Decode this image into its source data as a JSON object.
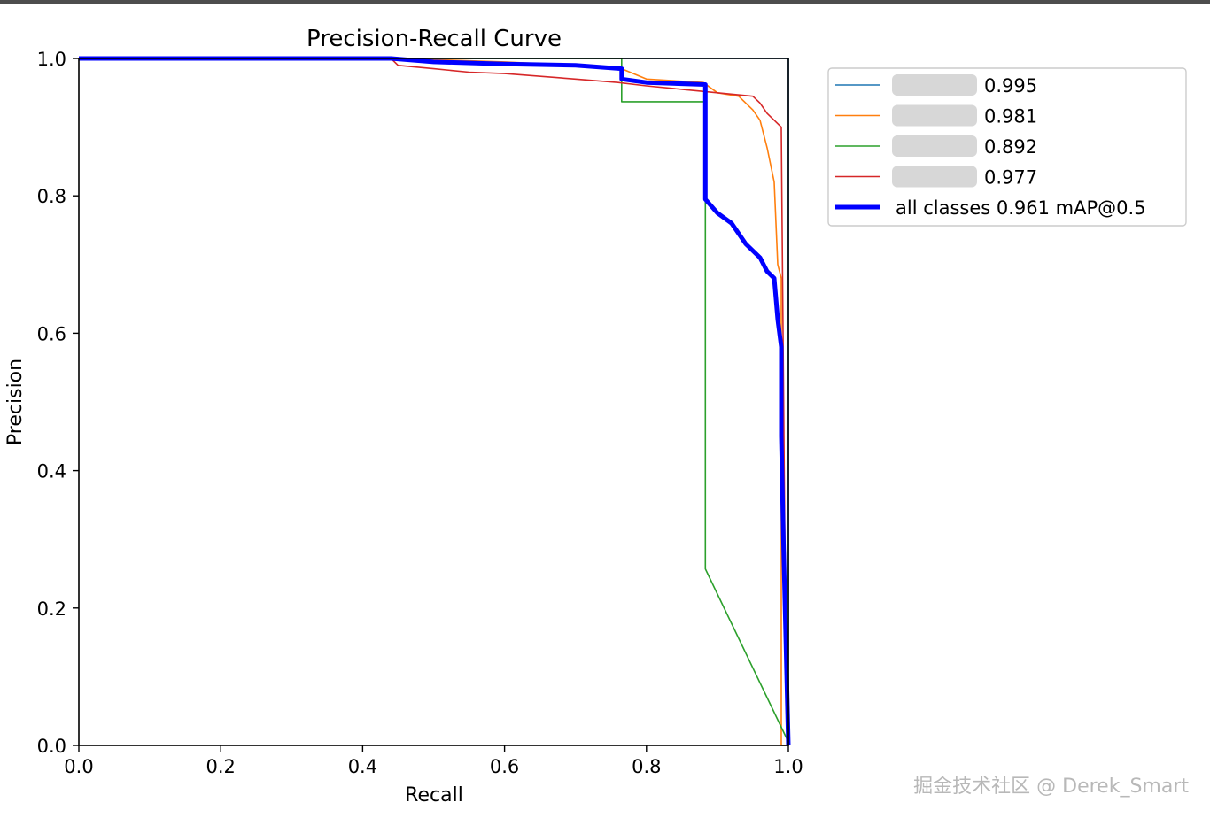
{
  "chart_data": {
    "type": "line",
    "title": "Precision-Recall Curve",
    "xlabel": "Recall",
    "ylabel": "Precision",
    "xlim": [
      0,
      1
    ],
    "ylim": [
      0,
      1
    ],
    "xticks": [
      "0.0",
      "0.2",
      "0.4",
      "0.6",
      "0.8",
      "1.0"
    ],
    "yticks": [
      "0.0",
      "0.2",
      "0.4",
      "0.6",
      "0.8",
      "1.0"
    ],
    "grid": false,
    "legend_position": "outside-top-right",
    "series": [
      {
        "name": "0.995",
        "color": "#1f77b4",
        "x": [
          0.0,
          0.998,
          1.0,
          1.0
        ],
        "y": [
          1.0,
          1.0,
          1.0,
          0.0
        ]
      },
      {
        "name": "0.981",
        "color": "#ff7f0e",
        "x": [
          0.0,
          0.45,
          0.6,
          0.7,
          0.765,
          0.8,
          0.88,
          0.9,
          0.93,
          0.95,
          0.96,
          0.97,
          0.98,
          0.985,
          0.99,
          0.99,
          1.0
        ],
        "y": [
          1.0,
          1.0,
          0.995,
          0.99,
          0.985,
          0.97,
          0.965,
          0.95,
          0.945,
          0.925,
          0.91,
          0.87,
          0.82,
          0.7,
          0.68,
          0.0,
          0.0
        ]
      },
      {
        "name": "0.892",
        "color": "#2ca02c",
        "x": [
          0.0,
          0.765,
          0.765,
          0.883,
          0.883,
          0.883,
          1.0
        ],
        "y": [
          1.0,
          1.0,
          0.937,
          0.937,
          0.8,
          0.257,
          0.005
        ]
      },
      {
        "name": "0.977",
        "color": "#d62728",
        "x": [
          0.0,
          0.44,
          0.45,
          0.5,
          0.55,
          0.6,
          0.7,
          0.76,
          0.8,
          0.85,
          0.9,
          0.95,
          0.96,
          0.97,
          0.98,
          0.99,
          0.995,
          1.0
        ],
        "y": [
          1.0,
          1.0,
          0.99,
          0.985,
          0.98,
          0.978,
          0.97,
          0.965,
          0.96,
          0.955,
          0.95,
          0.945,
          0.935,
          0.92,
          0.91,
          0.9,
          0.3,
          0.0
        ]
      },
      {
        "name": "all classes 0.961 mAP@0.5",
        "color": "#0000ff",
        "thick": true,
        "x": [
          0.0,
          0.44,
          0.5,
          0.6,
          0.7,
          0.765,
          0.765,
          0.8,
          0.883,
          0.883,
          0.9,
          0.92,
          0.94,
          0.96,
          0.97,
          0.98,
          0.985,
          0.99,
          0.99,
          0.993,
          1.0
        ],
        "y": [
          1.0,
          1.0,
          0.995,
          0.992,
          0.99,
          0.985,
          0.97,
          0.965,
          0.962,
          0.795,
          0.775,
          0.76,
          0.73,
          0.71,
          0.69,
          0.68,
          0.62,
          0.58,
          0.45,
          0.3,
          0.0
        ]
      }
    ]
  },
  "watermark": "掘金技术社区 @ Derek_Smart"
}
